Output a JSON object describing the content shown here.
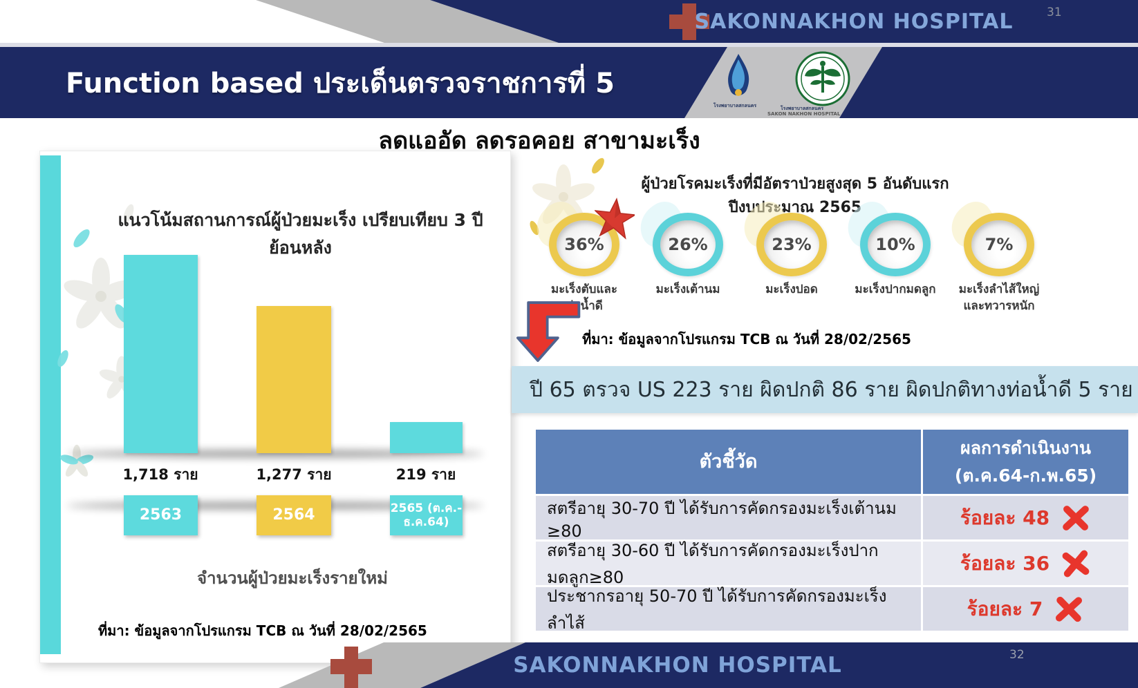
{
  "page": {
    "top_bar": {
      "hospital_name": "SAKONNAKHON HOSPITAL",
      "page_number": "31"
    },
    "bottom_bar": {
      "hospital_name": "SAKONNAKHON HOSPITAL",
      "page_number": "32"
    }
  },
  "title_banner": {
    "title": "Function based ประเด็นตรวจราชการที่ 5"
  },
  "logos": {
    "hospital_logo_caption": "โรงพยาบาลสกลนคร",
    "moph_logo_caption_th": "โรงพยาบาลสกลนคร",
    "moph_logo_caption_en": "SAKON NAKHON HOSPITAL"
  },
  "subtitle": "ลดแออัด ลดรอคอย สาขามะเร็ง",
  "left_panel": {
    "chart_title": "แนวโน้มสถานการณ์ผู้ป่วยมะเร็ง เปรียบเทียบ 3 ปี ย้อนหลัง",
    "bars": [
      {
        "value_label": "1,718 ราย",
        "year_label": "2563",
        "year_label_line2": "",
        "color": "#5ddadd"
      },
      {
        "value_label": "1,277 ราย",
        "year_label": "2564",
        "year_label_line2": "",
        "color": "#f1cb47"
      },
      {
        "value_label": "219 ราย",
        "year_label": "2565 (ต.ค.-",
        "year_label_line2": "ธ.ค.64)",
        "color": "#5ddadd"
      }
    ],
    "axis_label": "จำนวนผู้ป่วยมะเร็งรายใหม่",
    "source": "ที่มา: ข้อมูลจากโปรแกรม TCB ณ วันที่ 28/02/2565"
  },
  "right_panel": {
    "top5_title_line1": "ผู้ป่วยโรคมะเร็งที่มีอัตราป่วยสูงสุด 5 อันดับแรก",
    "top5_title_line2": "ปีงบประมาณ 2565",
    "donuts": [
      {
        "percent": "36%",
        "label_line1": "มะเร็งตับและ",
        "label_line2": "ท่อน้ำดี",
        "ring_color": "#ecc94e",
        "accent_color": "#f6ecbb",
        "starred": true
      },
      {
        "percent": "26%",
        "label_line1": "มะเร็งเต้านม",
        "label_line2": "",
        "ring_color": "#5cd2d9",
        "accent_color": "#d4f2f5",
        "starred": false
      },
      {
        "percent": "23%",
        "label_line1": "มะเร็งปอด",
        "label_line2": "",
        "ring_color": "#ecc94e",
        "accent_color": "#f6ecbb",
        "starred": false
      },
      {
        "percent": "10%",
        "label_line1": "มะเร็งปากมดลูก",
        "label_line2": "",
        "ring_color": "#5cd2d9",
        "accent_color": "#d4f2f5",
        "starred": false
      },
      {
        "percent": "7%",
        "label_line1": "มะเร็งลำไส้ใหญ่",
        "label_line2": "และทวารหนัก",
        "ring_color": "#ecc94e",
        "accent_color": "#f6ecbb",
        "starred": false
      }
    ],
    "source": "ที่มา: ข้อมูลจากโปรแกรม TCB ณ วันที่ 28/02/2565",
    "highlight_text": "ปี 65 ตรวจ US 223 ราย ผิดปกติ 86 ราย ผิดปกติทางท่อน้ำดี 5 ราย"
  },
  "table": {
    "headers": {
      "indicator": "ตัวชี้วัด",
      "result_line1": "ผลการดำเนินงาน",
      "result_line2": "(ต.ค.64-ก.พ.65)"
    },
    "rows": [
      {
        "indicator": "สตรีอายุ 30-70 ปี ได้รับการคัดกรองมะเร็งเต้านม ≥80",
        "result": "ร้อยละ 48",
        "status": "fail"
      },
      {
        "indicator": "สตรีอายุ 30-60 ปี ได้รับการคัดกรองมะเร็งปากมดลูก≥80",
        "result": "ร้อยละ 36",
        "status": "fail"
      },
      {
        "indicator": "ประชากรอายุ 50-70 ปี ได้รับการคัดกรองมะเร็งลำไส้",
        "result": "ร้อยละ 7",
        "status": "fail"
      }
    ]
  },
  "chart_data": [
    {
      "type": "bar",
      "title": "แนวโน้มสถานการณ์ผู้ป่วยมะเร็ง เปรียบเทียบ 3 ปี ย้อนหลัง",
      "categories": [
        "2563",
        "2564",
        "2565 (ต.ค.-ธ.ค.64)"
      ],
      "values": [
        1718,
        1277,
        219
      ],
      "unit": "ราย",
      "xlabel": "จำนวนผู้ป่วยมะเร็งรายใหม่",
      "ylabel": "",
      "bar_colors": [
        "#5ddadd",
        "#f1cb47",
        "#5ddadd"
      ],
      "grid": false,
      "legend": false
    },
    {
      "type": "pie",
      "title": "ผู้ป่วยโรคมะเร็งที่มีอัตราป่วยสูงสุด 5 อันดับแรก ปีงบประมาณ 2565",
      "categories": [
        "มะเร็งตับและท่อน้ำดี",
        "มะเร็งเต้านม",
        "มะเร็งปอด",
        "มะเร็งปากมดลูก",
        "มะเร็งลำไส้ใหญ่และทวารหนัก"
      ],
      "values": [
        36,
        26,
        23,
        10,
        7
      ],
      "unit": "%",
      "annotation": "อันดับ 1 มีดาวสีแดงกำกับ"
    }
  ],
  "colors": {
    "navy": "#1d2963",
    "gray_band": "#b9b9b9",
    "cross_red": "#a84b3e",
    "hospital_text": "#84a7da",
    "cyan": "#5ddadd",
    "yellow": "#f1cb47",
    "table_header_blue": "#5d81b8",
    "row_dark": "#d9dbe7",
    "row_light": "#e8e9f1",
    "highlight_bg": "#c6e1ed",
    "result_red": "#dd392d",
    "accent_red": "#e8352c"
  }
}
